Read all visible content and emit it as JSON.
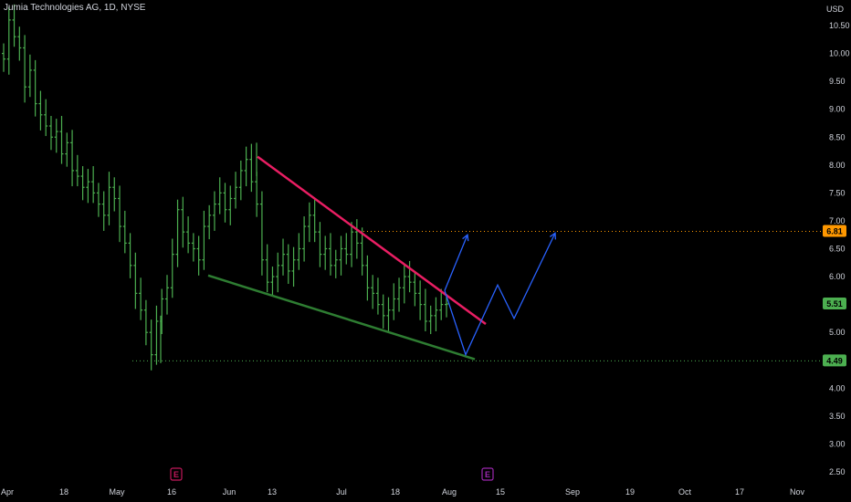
{
  "header": {
    "symbol_title": "Jumia Technologies AG, 1D, NYSE"
  },
  "axis": {
    "currency": "USD",
    "y_ticks": [
      "10.50",
      "10.00",
      "9.50",
      "9.00",
      "8.50",
      "8.00",
      "7.50",
      "7.00",
      "6.50",
      "6.00",
      "5.50",
      "5.00",
      "4.50",
      "4.00",
      "3.50",
      "3.00",
      "2.50"
    ],
    "x_ticks": [
      "Apr",
      "18",
      "May",
      "16",
      "Jun",
      "13",
      "Jul",
      "18",
      "Aug",
      "15",
      "Sep",
      "19",
      "Oct",
      "17",
      "Nov"
    ]
  },
  "price_badges": [
    {
      "label": "6.81",
      "color": "#ff9800"
    },
    {
      "label": "5.51",
      "color": "#4caf50"
    },
    {
      "label": "4.49",
      "color": "#4caf50"
    }
  ],
  "earnings_markers": [
    {
      "label": "E",
      "color": "#c2185b"
    },
    {
      "label": "E",
      "color": "#9c27b0"
    }
  ],
  "colors": {
    "bull": "#4caf50",
    "bear": "#4caf50",
    "resistance": "#e91e63",
    "support": "#2e7d32",
    "projection": "#2962ff"
  },
  "chart_data": {
    "type": "ohlc",
    "symbol": "Jumia Technologies AG",
    "interval": "1D",
    "exchange": "NYSE",
    "currency": "USD",
    "ylim": [
      2.35,
      10.75
    ],
    "horizontal_levels": [
      6.81,
      4.49
    ],
    "last_price": 5.51,
    "closes": [
      9.9,
      10.6,
      10.3,
      10.1,
      9.4,
      9.7,
      9.1,
      8.9,
      8.7,
      8.5,
      8.6,
      8.2,
      8.4,
      7.9,
      7.8,
      7.6,
      7.7,
      7.5,
      7.3,
      7.1,
      7.6,
      7.4,
      6.9,
      6.6,
      6.2,
      5.7,
      5.4,
      5.0,
      4.6,
      5.2,
      5.6,
      5.8,
      6.4,
      7.2,
      6.8,
      6.6,
      6.5,
      6.3,
      6.9,
      7.1,
      7.3,
      7.5,
      7.2,
      7.4,
      7.6,
      7.9,
      8.1,
      7.7,
      7.3,
      6.3,
      5.9,
      6.0,
      6.2,
      6.4,
      6.1,
      6.3,
      6.5,
      6.9,
      7.1,
      6.8,
      6.4,
      6.5,
      6.2,
      6.3,
      6.5,
      6.4,
      6.8,
      6.6,
      6.2,
      5.8,
      5.7,
      5.5,
      5.3,
      5.4,
      5.6,
      5.8,
      6.0,
      5.9,
      5.7,
      5.5,
      5.2,
      5.3,
      5.4,
      5.5,
      5.51
    ],
    "resistance_line": {
      "start": {
        "date": "2022-06-09",
        "price": 8.15
      },
      "end": {
        "date": "2022-08-10",
        "price": 5.15
      }
    },
    "support_line": {
      "start": {
        "date": "2022-05-23",
        "price": 6.02
      },
      "end": {
        "date": "2022-08-10",
        "price": 4.52
      }
    },
    "projection_paths": [
      [
        {
          "date": "2022-07-30",
          "price": 5.75
        },
        {
          "date": "2022-08-05",
          "price": 6.75
        }
      ],
      [
        {
          "date": "2022-07-30",
          "price": 5.75
        },
        {
          "date": "2022-08-06",
          "price": 4.6
        },
        {
          "date": "2022-08-15",
          "price": 5.85
        },
        {
          "date": "2022-08-20",
          "price": 5.25
        },
        {
          "date": "2022-08-30",
          "price": 6.78
        }
      ]
    ]
  }
}
